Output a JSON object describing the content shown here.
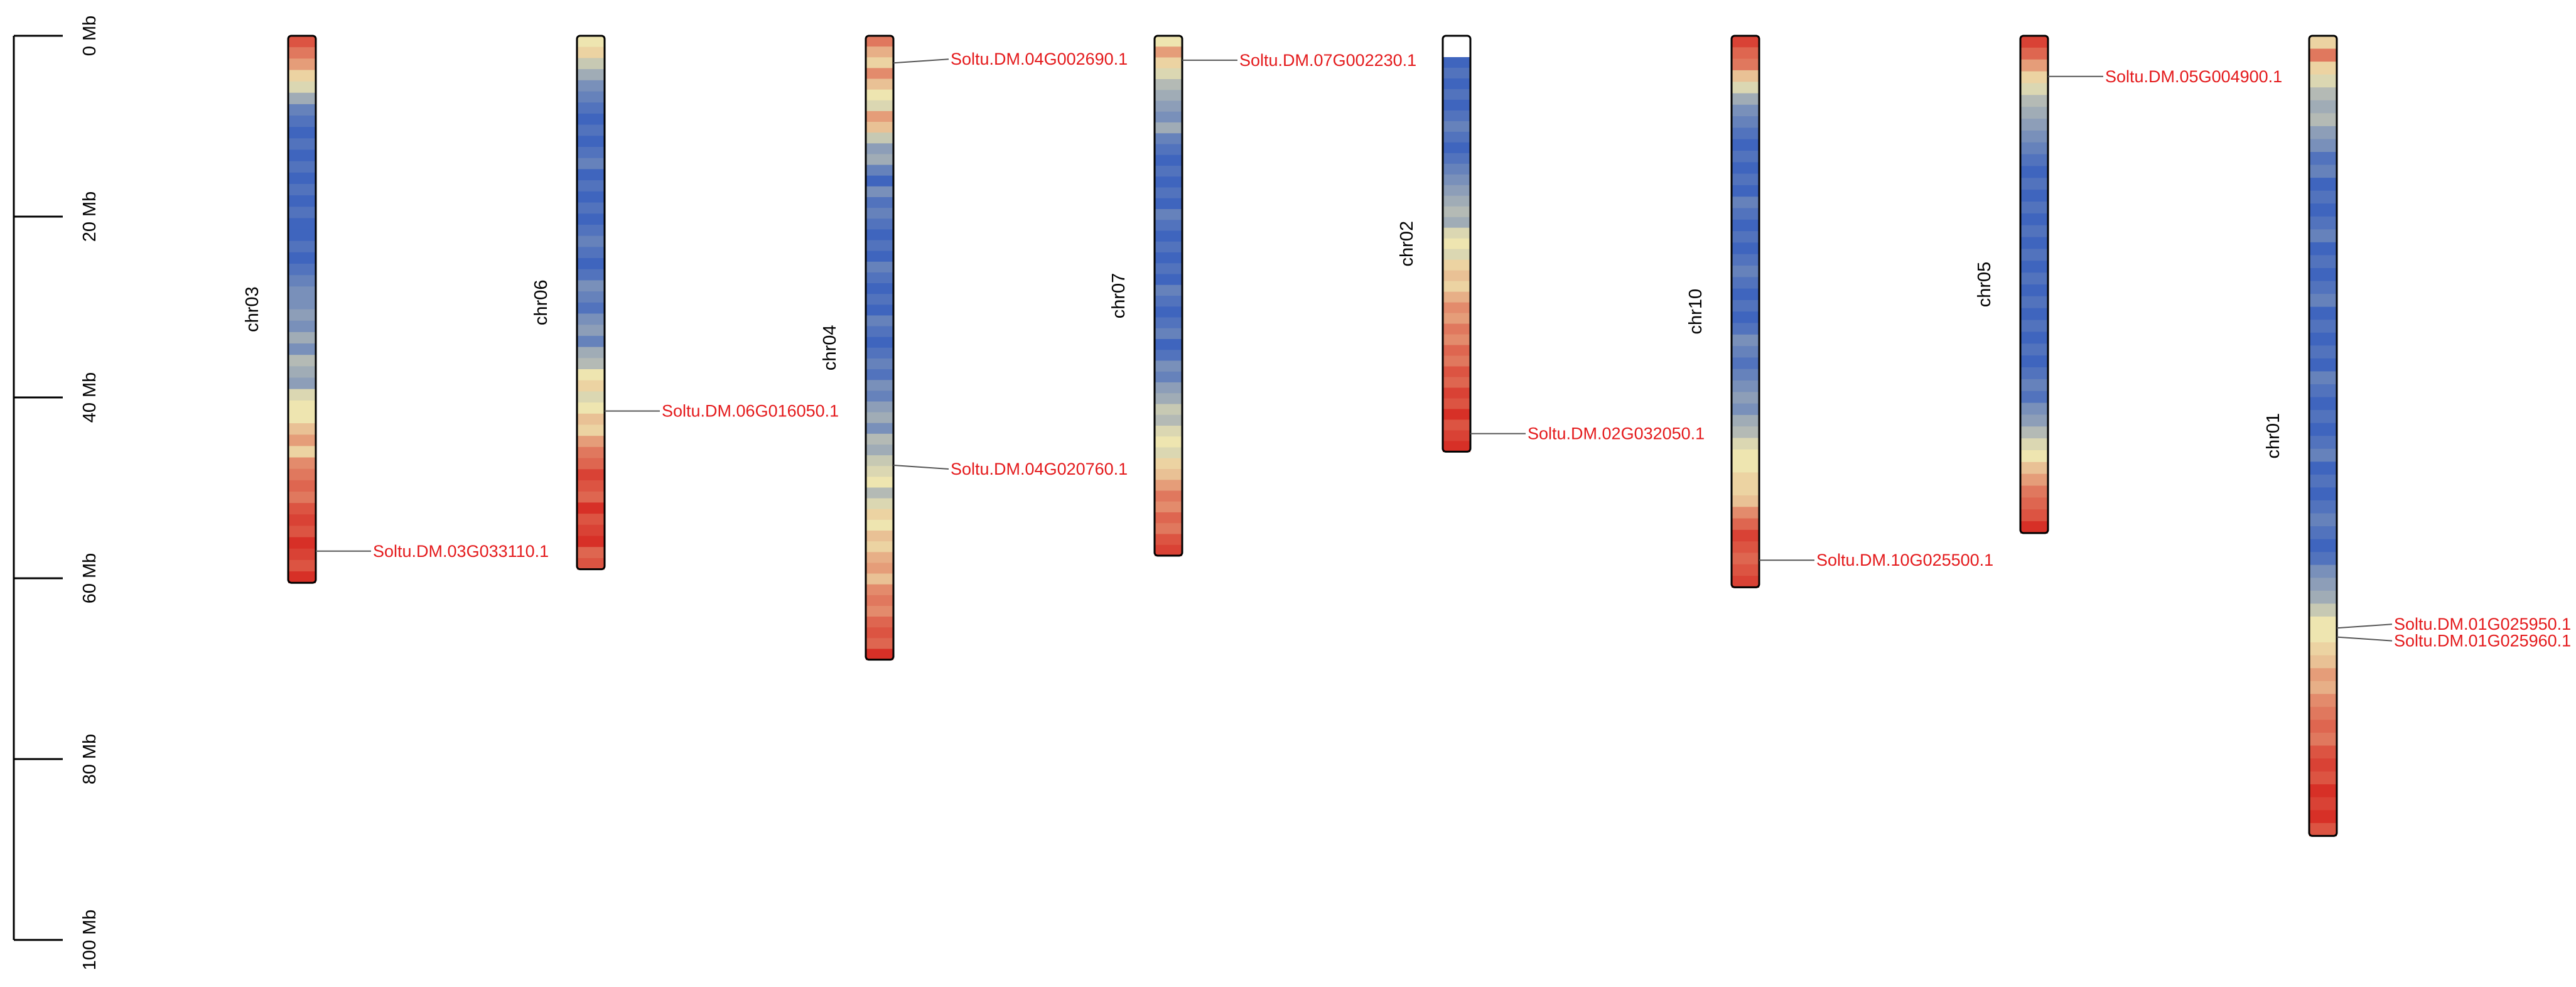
{
  "colors": {
    "gene_text": "#e41a1c",
    "leader_line": "#555555",
    "chromosome_outline": "#000000",
    "heat_high": "#d73027",
    "heat_mid": "#eee5b0",
    "heat_low": "#2b57c0"
  },
  "axis": {
    "unit": "Mb",
    "min": 0,
    "max": 100,
    "ticks": [
      {
        "value": 0,
        "label": "0 Mb"
      },
      {
        "value": 20,
        "label": "20 Mb"
      },
      {
        "value": 40,
        "label": "40 Mb"
      },
      {
        "value": 60,
        "label": "60 Mb"
      },
      {
        "value": 80,
        "label": "80 Mb"
      },
      {
        "value": 100,
        "label": "100 Mb"
      }
    ]
  },
  "chromosomes": [
    {
      "name": "chr03",
      "length": 60.5,
      "density": [
        0.9,
        0.8,
        0.7,
        0.55,
        0.45,
        0.3,
        0.15,
        0.1,
        0.05,
        0.1,
        0.05,
        0.1,
        0.05,
        0.1,
        0.05,
        0.1,
        0.05,
        0.05,
        0.1,
        0.05,
        0.1,
        0.15,
        0.2,
        0.2,
        0.25,
        0.2,
        0.3,
        0.2,
        0.35,
        0.3,
        0.25,
        0.45,
        0.5,
        0.5,
        0.6,
        0.7,
        0.55,
        0.75,
        0.8,
        0.85,
        0.8,
        0.9,
        0.95,
        0.9,
        1.0,
        0.95,
        0.9,
        1.0
      ],
      "genes": [
        {
          "pos": 57.0,
          "name": "Soltu.DM.03G033110.1"
        }
      ]
    },
    {
      "name": "chr06",
      "length": 59.0,
      "density": [
        0.5,
        0.55,
        0.4,
        0.3,
        0.2,
        0.15,
        0.1,
        0.05,
        0.1,
        0.05,
        0.1,
        0.15,
        0.05,
        0.1,
        0.05,
        0.1,
        0.05,
        0.1,
        0.15,
        0.1,
        0.05,
        0.1,
        0.2,
        0.15,
        0.1,
        0.2,
        0.25,
        0.15,
        0.3,
        0.35,
        0.5,
        0.55,
        0.45,
        0.5,
        0.6,
        0.55,
        0.7,
        0.8,
        0.85,
        0.95,
        0.9,
        0.85,
        1.0,
        0.9,
        0.95,
        1.0,
        0.85,
        0.9
      ],
      "genes": [
        {
          "pos": 41.5,
          "name": "Soltu.DM.06G016050.1"
        }
      ]
    },
    {
      "name": "chr04",
      "length": 69.0,
      "density": [
        0.8,
        0.65,
        0.55,
        0.75,
        0.6,
        0.5,
        0.45,
        0.7,
        0.6,
        0.4,
        0.25,
        0.3,
        0.15,
        0.05,
        0.2,
        0.1,
        0.15,
        0.1,
        0.05,
        0.1,
        0.05,
        0.15,
        0.1,
        0.05,
        0.1,
        0.05,
        0.15,
        0.1,
        0.05,
        0.1,
        0.15,
        0.1,
        0.2,
        0.15,
        0.25,
        0.3,
        0.2,
        0.35,
        0.3,
        0.4,
        0.45,
        0.5,
        0.35,
        0.45,
        0.55,
        0.5,
        0.6,
        0.55,
        0.65,
        0.7,
        0.6,
        0.75,
        0.8,
        0.75,
        0.85,
        0.9,
        0.85,
        1.0
      ],
      "genes": [
        {
          "pos": 3.0,
          "name": "Soltu.DM.04G002690.1"
        },
        {
          "pos": 47.5,
          "name": "Soltu.DM.04G020760.1"
        }
      ]
    },
    {
      "name": "chr07",
      "length": 57.5,
      "density": [
        0.5,
        0.7,
        0.55,
        0.45,
        0.35,
        0.3,
        0.25,
        0.2,
        0.3,
        0.15,
        0.1,
        0.05,
        0.1,
        0.05,
        0.1,
        0.05,
        0.15,
        0.1,
        0.05,
        0.1,
        0.05,
        0.1,
        0.05,
        0.15,
        0.1,
        0.05,
        0.1,
        0.15,
        0.05,
        0.1,
        0.2,
        0.15,
        0.25,
        0.3,
        0.4,
        0.35,
        0.45,
        0.5,
        0.45,
        0.55,
        0.6,
        0.7,
        0.8,
        0.75,
        0.85,
        0.8,
        0.9,
        0.95
      ],
      "genes": [
        {
          "pos": 2.7,
          "name": "Soltu.DM.07G002230.1"
        }
      ]
    },
    {
      "name": "chr02",
      "length": 46.0,
      "density": [
        -1,
        -1,
        0.05,
        0.1,
        0.05,
        0.1,
        0.05,
        0.1,
        0.15,
        0.1,
        0.05,
        0.1,
        0.15,
        0.2,
        0.25,
        0.3,
        0.35,
        0.3,
        0.45,
        0.5,
        0.45,
        0.55,
        0.6,
        0.55,
        0.65,
        0.75,
        0.7,
        0.8,
        0.75,
        0.85,
        0.8,
        0.9,
        0.85,
        0.95,
        0.9,
        1.0,
        0.9,
        0.95,
        1.0
      ],
      "genes": [
        {
          "pos": 44.0,
          "name": "Soltu.DM.02G032050.1"
        }
      ]
    },
    {
      "name": "chr10",
      "length": 61.0,
      "density": [
        0.95,
        0.85,
        0.8,
        0.6,
        0.45,
        0.3,
        0.2,
        0.15,
        0.1,
        0.05,
        0.1,
        0.05,
        0.1,
        0.05,
        0.15,
        0.1,
        0.05,
        0.1,
        0.05,
        0.1,
        0.15,
        0.1,
        0.05,
        0.1,
        0.05,
        0.1,
        0.2,
        0.15,
        0.1,
        0.15,
        0.2,
        0.25,
        0.2,
        0.3,
        0.35,
        0.45,
        0.5,
        0.5,
        0.55,
        0.55,
        0.6,
        0.75,
        0.85,
        0.95,
        0.9,
        0.85,
        0.9,
        0.95
      ],
      "genes": [
        {
          "pos": 58.0,
          "name": "Soltu.DM.10G025500.1"
        }
      ]
    },
    {
      "name": "chr05",
      "length": 55.0,
      "density": [
        0.95,
        0.85,
        0.7,
        0.55,
        0.45,
        0.35,
        0.3,
        0.25,
        0.2,
        0.15,
        0.1,
        0.05,
        0.1,
        0.05,
        0.1,
        0.05,
        0.1,
        0.05,
        0.1,
        0.05,
        0.1,
        0.05,
        0.1,
        0.05,
        0.1,
        0.05,
        0.1,
        0.05,
        0.1,
        0.15,
        0.1,
        0.2,
        0.25,
        0.35,
        0.45,
        0.5,
        0.6,
        0.7,
        0.8,
        0.85,
        0.9,
        1.0
      ],
      "genes": [
        {
          "pos": 4.5,
          "name": "Soltu.DM.05G004900.1"
        }
      ]
    },
    {
      "name": "chr01",
      "length": 88.5,
      "density": [
        0.55,
        0.8,
        0.55,
        0.45,
        0.35,
        0.3,
        0.35,
        0.25,
        0.2,
        0.1,
        0.15,
        0.05,
        0.1,
        0.05,
        0.1,
        0.15,
        0.05,
        0.1,
        0.05,
        0.1,
        0.15,
        0.05,
        0.1,
        0.05,
        0.1,
        0.05,
        0.15,
        0.1,
        0.05,
        0.1,
        0.05,
        0.1,
        0.15,
        0.05,
        0.1,
        0.05,
        0.1,
        0.15,
        0.1,
        0.05,
        0.1,
        0.2,
        0.25,
        0.3,
        0.4,
        0.5,
        0.5,
        0.55,
        0.6,
        0.7,
        0.65,
        0.75,
        0.8,
        0.85,
        0.8,
        0.9,
        0.95,
        0.9,
        1.0,
        0.95,
        1.0,
        0.9
      ],
      "genes": [
        {
          "pos": 65.5,
          "name": "Soltu.DM.01G025950.1"
        },
        {
          "pos": 66.5,
          "name": "Soltu.DM.01G025960.1"
        }
      ]
    }
  ]
}
